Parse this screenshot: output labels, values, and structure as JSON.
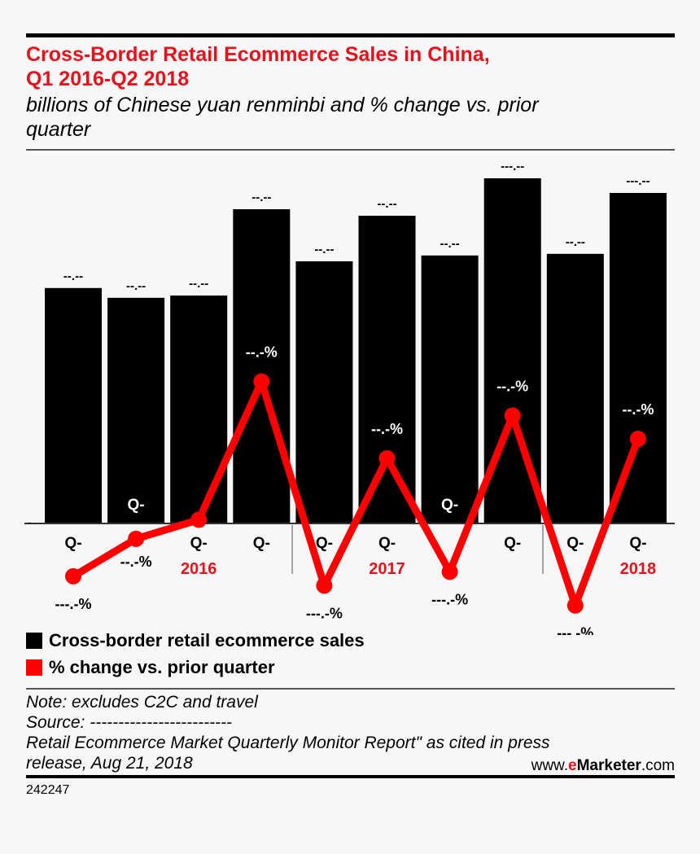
{
  "header": {
    "title_line1": "Cross-Border Retail Ecommerce Sales in China,",
    "title_line2": "Q1 2016-Q2 2018",
    "subtitle_line1": "billions of Chinese yuan renminbi and % change vs. prior",
    "subtitle_line2": "quarter"
  },
  "chart_data": {
    "type": "bar+line",
    "title": "Cross-Border Retail Ecommerce Sales in China, Q1 2016-Q2 2018",
    "subtitle": "billions of Chinese yuan renminbi and % change vs. prior quarter",
    "categories": [
      "Q-",
      "Q-",
      "Q-",
      "Q-",
      "Q-",
      "Q-",
      "Q-",
      "Q-",
      "Q-",
      "Q-"
    ],
    "years": [
      {
        "label": "2016",
        "at": 2
      },
      {
        "label": "2017",
        "at": 5
      },
      {
        "label": "2018",
        "at": 9
      }
    ],
    "zero_tick_label": "-",
    "grid": false,
    "legend_position": "bottom-left",
    "series": [
      {
        "name": "Cross-border retail ecommerce sales",
        "type": "bar",
        "color": "#000000",
        "values": [
          72.3,
          69.3,
          70.0,
          96.5,
          80.5,
          94.5,
          82.3,
          106.0,
          82.8,
          101.5
        ],
        "data_labels": [
          "--.--",
          "--.--",
          "--.--",
          "--.--",
          "--.--",
          "--.--",
          "--.--",
          "---.--",
          "--.--",
          "---.--"
        ]
      },
      {
        "name": "% change vs. prior quarter",
        "type": "line",
        "color": "#ff0000",
        "values": [
          -14.1,
          -4.1,
          1.0,
          37.9,
          -16.6,
          17.4,
          -12.9,
          28.8,
          -21.9,
          22.6
        ],
        "data_labels": [
          "---.-%",
          "--.-%",
          "-.-%",
          "--.-%",
          "---.-%",
          "--.-%",
          "---.-%",
          "--.-%",
          "---.-%",
          "--.-%"
        ]
      }
    ]
  },
  "legend": {
    "bars": "Cross-border retail ecommerce sales",
    "line": "% change vs. prior quarter"
  },
  "notes": {
    "note": "Note: excludes C2C and travel",
    "source": "Source: -------------------------",
    "source_line2": "Retail Ecommerce Market Quarterly Monitor Report\" as cited in press",
    "source_line3": "release, Aug 21, 2018"
  },
  "brand": {
    "prefix": "www.",
    "e": "e",
    "name": "Marketer",
    "suffix": ".com"
  },
  "chart_id": "242247"
}
